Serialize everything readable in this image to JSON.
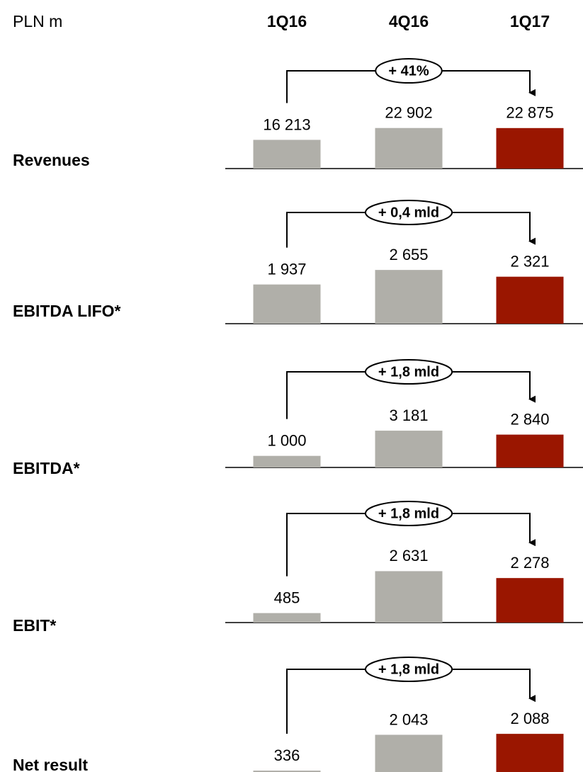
{
  "header": {
    "unit": "PLN m",
    "categories": [
      "1Q16",
      "4Q16",
      "1Q17"
    ]
  },
  "chart_data": [
    {
      "type": "bar",
      "title": "Revenues",
      "values": [
        16213,
        22902,
        22875
      ],
      "value_labels": [
        "16 213",
        "22 902",
        "22 875"
      ],
      "annotation": "+ 41%",
      "ylim": [
        0,
        32000
      ],
      "colors": [
        "#b0afa9",
        "#b0afa9",
        "#9a1600"
      ]
    },
    {
      "type": "bar",
      "title": "EBITDA LIFO*",
      "values": [
        1937,
        2655,
        2321
      ],
      "value_labels": [
        "1 937",
        "2 655",
        "2 321"
      ],
      "annotation": "+ 0,4 mld",
      "ylim": [
        0,
        2800
      ],
      "colors": [
        "#b0afa9",
        "#b0afa9",
        "#9a1600"
      ]
    },
    {
      "type": "bar",
      "title": "EBITDA*",
      "values": [
        1000,
        3181,
        2840
      ],
      "value_labels": [
        "1 000",
        "3 181",
        "2 840"
      ],
      "annotation": "+ 1,8 mld",
      "ylim": [
        0,
        4900
      ],
      "colors": [
        "#b0afa9",
        "#b0afa9",
        "#9a1600"
      ]
    },
    {
      "type": "bar",
      "title": "EBIT*",
      "values": [
        485,
        2631,
        2278
      ],
      "value_labels": [
        "485",
        "2 631",
        "2 278"
      ],
      "annotation": "+ 1,8 mld",
      "ylim": [
        0,
        2900
      ],
      "colors": [
        "#b0afa9",
        "#b0afa9",
        "#9a1600"
      ]
    },
    {
      "type": "bar",
      "title": "Net result",
      "values": [
        336,
        2043,
        2088
      ],
      "value_labels": [
        "336",
        "2 043",
        "2 088"
      ],
      "annotation": "+ 1,8 mld",
      "ylim": [
        0,
        2700
      ],
      "colors": [
        "#b0afa9",
        "#b0afa9",
        "#9a1600"
      ]
    }
  ]
}
